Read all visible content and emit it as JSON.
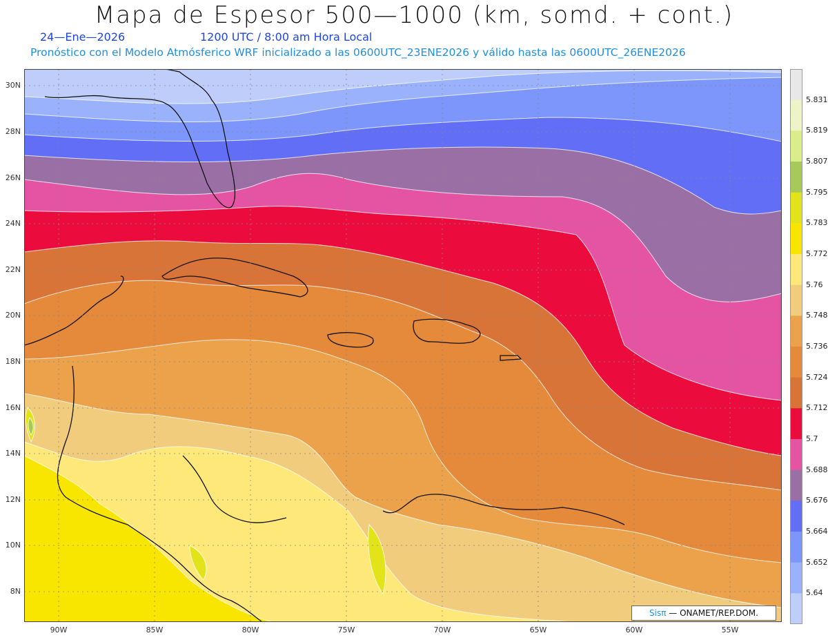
{
  "header": {
    "title": "Mapa de Espesor 500—1000 (km, somd. + cont.)",
    "date": "24—Ene—2026",
    "time": "1200 UTC / 8:00 am Hora Local",
    "forecast_line": "Pronóstico con el Modelo Atmósferico WRF inicializado a las 0600UTC_23ENE2026 y válido hasta las  0600UTC_26ENE2026"
  },
  "map": {
    "lat_labels": [
      "30N",
      "28N",
      "26N",
      "24N",
      "22N",
      "20N",
      "18N",
      "16N",
      "14N",
      "12N",
      "10N",
      "8N"
    ],
    "lon_labels": [
      "90W",
      "85W",
      "80W",
      "75W",
      "70W",
      "65W",
      "60W",
      "55W"
    ]
  },
  "colorbar": {
    "labels": [
      "5.831",
      "5.819",
      "5.807",
      "5.795",
      "5.783",
      "5.772",
      "5.76",
      "5.748",
      "5.736",
      "5.724",
      "5.712",
      "5.7",
      "5.688",
      "5.676",
      "5.664",
      "5.652",
      "5.64"
    ],
    "colors": [
      "#e8e8e8",
      "#eef4c8",
      "#d9ee8a",
      "#a6c95a",
      "#e3e31a",
      "#f9e600",
      "#fde879",
      "#f1cc7c",
      "#eba24a",
      "#e5893a",
      "#d97438",
      "#ec0b3d",
      "#e553a3",
      "#9a6fa6",
      "#616ef5",
      "#7c96fb",
      "#9ab2fb",
      "#bfcdfb"
    ]
  },
  "credit": {
    "brand": "Sisπ",
    "text": "— ONAMET/REP.DOM."
  }
}
